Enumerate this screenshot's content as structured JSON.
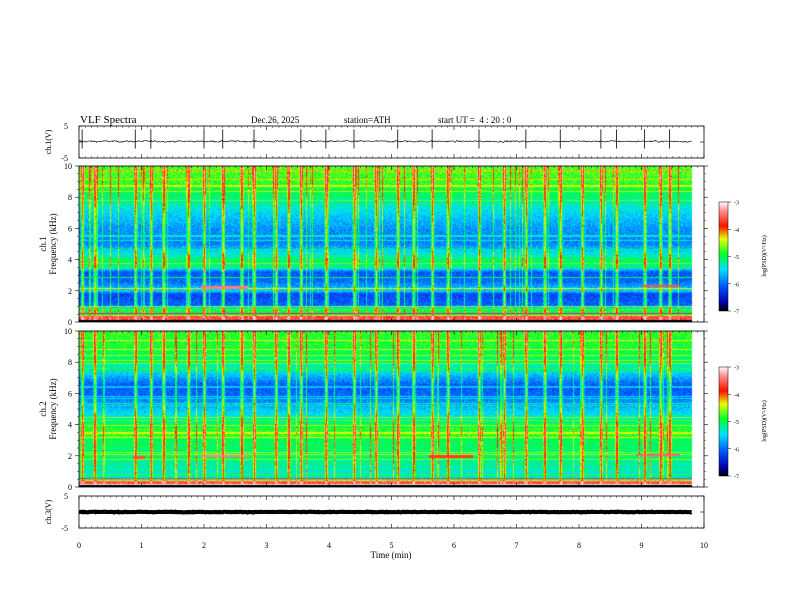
{
  "header": {
    "title": "VLF Spectra",
    "date": "Dec.26, 2025",
    "station": "station=ATH",
    "start": "start UT =  4 : 20 : 0"
  },
  "chart_data": [
    {
      "id": "ch1_waveform",
      "type": "line",
      "ylabel": "ch.1(V)",
      "ylim": [
        -5,
        5
      ],
      "ytick_labels": [
        "5",
        "-5"
      ],
      "xlim": [
        0,
        9.8
      ],
      "baseline_v": 0.2,
      "noise_amplitude_v": 0.9,
      "spike_times_min": [
        0.05,
        0.9,
        1.15,
        2.0,
        2.3,
        2.8,
        3.55,
        3.95,
        4.4,
        5.1,
        5.65,
        6.4,
        7.15,
        7.7,
        8.35,
        8.6,
        9.05,
        9.45
      ]
    },
    {
      "id": "ch1_spectrogram",
      "type": "heatmap",
      "ylabel": "ch.1 Frequency (kHz)",
      "ylabel_lines": [
        "ch.1",
        "Frequency (kHz)"
      ],
      "ylim_khz": [
        0,
        10
      ],
      "ytick_labels": [
        "0",
        "2",
        "4",
        "6",
        "8",
        "10"
      ],
      "xlim_min": [
        0,
        9.8
      ],
      "colorbar": {
        "label": "log(PSD)(V²/Hz)",
        "range": [
          -7,
          -3
        ],
        "tick_labels": [
          "-3",
          "-4",
          "-5",
          "-6",
          "-7"
        ]
      },
      "level_profile": [
        {
          "f": 0.0,
          "v": -3.6
        },
        {
          "f": 0.35,
          "v": -3.6
        },
        {
          "f": 0.5,
          "v": -5.4
        },
        {
          "f": 0.8,
          "v": -4.8
        },
        {
          "f": 1.0,
          "v": -6.0
        },
        {
          "f": 1.8,
          "v": -6.2
        },
        {
          "f": 2.0,
          "v": -5.5
        },
        {
          "f": 2.6,
          "v": -6.0
        },
        {
          "f": 3.2,
          "v": -6.1
        },
        {
          "f": 3.5,
          "v": -5.2
        },
        {
          "f": 4.0,
          "v": -5.1
        },
        {
          "f": 4.4,
          "v": -5.4
        },
        {
          "f": 5.0,
          "v": -5.9
        },
        {
          "f": 6.0,
          "v": -5.8
        },
        {
          "f": 7.0,
          "v": -5.5
        },
        {
          "f": 8.0,
          "v": -5.1
        },
        {
          "f": 9.0,
          "v": -4.8
        },
        {
          "f": 10.0,
          "v": -4.7
        }
      ],
      "lines_khz": [
        {
          "f": 0.55,
          "v": -3.8
        },
        {
          "f": 1.0,
          "v": -4.6
        },
        {
          "f": 2.15,
          "v": -4.4
        },
        {
          "f": 2.9,
          "v": -5.0
        },
        {
          "f": 3.5,
          "v": -5.0
        },
        {
          "f": 4.0,
          "v": -4.9
        }
      ],
      "tones": [
        {
          "f": 2.2,
          "t0": 1.95,
          "t1": 2.7,
          "v": -3.4
        },
        {
          "f": 2.3,
          "t0": 9.0,
          "t1": 9.6,
          "v": -3.6
        }
      ],
      "sferic_times_min": [
        0.05,
        0.25,
        0.9,
        1.15,
        1.35,
        1.75,
        2.0,
        2.3,
        2.6,
        2.8,
        3.15,
        3.35,
        3.55,
        3.95,
        4.4,
        4.75,
        5.1,
        5.35,
        5.65,
        5.9,
        6.4,
        6.8,
        7.15,
        7.45,
        7.7,
        8.05,
        8.35,
        8.6,
        9.05,
        9.3,
        9.45
      ]
    },
    {
      "id": "ch2_spectrogram",
      "type": "heatmap",
      "ylabel": "ch.2 Frequency (kHz)",
      "ylabel_lines": [
        "ch.2",
        "Frequency (kHz)"
      ],
      "ylim_khz": [
        0,
        10
      ],
      "ytick_labels": [
        "0",
        "2",
        "4",
        "6",
        "8",
        "10"
      ],
      "xlim_min": [
        0,
        9.8
      ],
      "colorbar": {
        "label": "log(PSD)(V²/Hz)",
        "range": [
          -7,
          -3
        ],
        "tick_labels": [
          "-3",
          "-4",
          "-5",
          "-6",
          "-7"
        ]
      },
      "level_profile": [
        {
          "f": 0.0,
          "v": -3.6
        },
        {
          "f": 0.35,
          "v": -3.6
        },
        {
          "f": 0.5,
          "v": -5.4
        },
        {
          "f": 1.0,
          "v": -5.3
        },
        {
          "f": 2.0,
          "v": -5.1
        },
        {
          "f": 3.0,
          "v": -5.0
        },
        {
          "f": 3.4,
          "v": -4.8
        },
        {
          "f": 3.8,
          "v": -4.9
        },
        {
          "f": 4.4,
          "v": -5.3
        },
        {
          "f": 5.0,
          "v": -5.6
        },
        {
          "f": 5.8,
          "v": -6.0
        },
        {
          "f": 6.5,
          "v": -6.1
        },
        {
          "f": 7.2,
          "v": -5.6
        },
        {
          "f": 8.0,
          "v": -5.1
        },
        {
          "f": 9.0,
          "v": -4.9
        },
        {
          "f": 10.0,
          "v": -4.8
        }
      ],
      "lines_khz": [
        {
          "f": 0.55,
          "v": -4.0
        },
        {
          "f": 1.8,
          "v": -4.6
        },
        {
          "f": 2.1,
          "v": -4.5
        },
        {
          "f": 3.5,
          "v": -4.4
        },
        {
          "f": 4.5,
          "v": -4.6
        }
      ],
      "tones": [
        {
          "f": 2.0,
          "t0": 1.95,
          "t1": 2.7,
          "v": -3.4
        },
        {
          "f": 1.9,
          "t0": 0.85,
          "t1": 1.05,
          "v": -3.6
        },
        {
          "f": 1.95,
          "t0": 5.6,
          "t1": 6.3,
          "v": -3.7
        },
        {
          "f": 2.05,
          "t0": 8.9,
          "t1": 9.6,
          "v": -3.5
        }
      ],
      "sferic_times_min": [
        0.05,
        0.25,
        0.9,
        1.15,
        1.35,
        1.75,
        2.0,
        2.3,
        2.6,
        2.8,
        3.15,
        3.35,
        3.55,
        3.95,
        4.4,
        4.75,
        5.1,
        5.35,
        5.65,
        5.9,
        6.4,
        6.8,
        7.15,
        7.45,
        7.7,
        8.05,
        8.35,
        8.6,
        9.05,
        9.3,
        9.45
      ]
    },
    {
      "id": "ch3_waveform",
      "type": "line",
      "ylabel": "ch.3(V)",
      "ylim": [
        -5,
        5
      ],
      "ytick_labels": [
        "5",
        "0",
        "-5"
      ],
      "xlim": [
        0,
        9.8
      ],
      "baseline_v": 0.0,
      "noise_amplitude_v": 0.35,
      "spike_times_min": []
    }
  ],
  "x_axis": {
    "label": "Time (min)",
    "range": [
      0,
      10
    ],
    "tick_labels": [
      "0",
      "1",
      "2",
      "3",
      "4",
      "5",
      "6",
      "7",
      "8",
      "9",
      "10"
    ]
  }
}
